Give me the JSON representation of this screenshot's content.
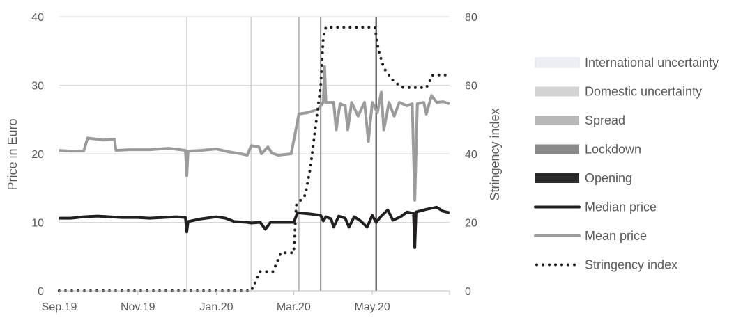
{
  "chart_data": {
    "type": "line",
    "left_axis": {
      "label": "Price in Euro",
      "ticks": [
        "0",
        "10",
        "20",
        "30",
        "40"
      ],
      "range": [
        0,
        40
      ]
    },
    "right_axis": {
      "label": "Stringency index",
      "ticks": [
        "0",
        "20",
        "40",
        "60",
        "80"
      ],
      "range": [
        0,
        80
      ]
    },
    "x_axis": {
      "ticks": [
        "Sep.19",
        "Nov.19",
        "Jan.20",
        "Mar.20",
        "May.20"
      ],
      "tick_dates": [
        "2019-09-01",
        "2019-11-01",
        "2020-01-01",
        "2020-03-01",
        "2020-05-01"
      ],
      "range": [
        "2019-09-01",
        "2020-06-30"
      ]
    },
    "grid": true,
    "legend_position": "right",
    "events": [
      {
        "name": "International uncertainty",
        "date": "2019-12-09",
        "color": "#eceef3"
      },
      {
        "name": "Domestic uncertainty",
        "date": "2020-01-28",
        "color": "#d3d3d3"
      },
      {
        "name": "Spread",
        "date": "2020-03-05",
        "color": "#b8b8b8"
      },
      {
        "name": "Lockdown",
        "date": "2020-03-22",
        "color": "#8a8a8a"
      },
      {
        "name": "Opening",
        "date": "2020-05-04",
        "color": "#2b2b2b"
      }
    ],
    "series": [
      {
        "name": "Median price",
        "axis": "left",
        "color": "#231f20",
        "style": "solid",
        "points": [
          [
            "2019-09-01",
            10.6
          ],
          [
            "2019-09-10",
            10.6
          ],
          [
            "2019-09-20",
            10.8
          ],
          [
            "2019-10-01",
            10.9
          ],
          [
            "2019-10-10",
            10.8
          ],
          [
            "2019-10-20",
            10.7
          ],
          [
            "2019-11-01",
            10.7
          ],
          [
            "2019-11-10",
            10.6
          ],
          [
            "2019-11-20",
            10.7
          ],
          [
            "2019-12-01",
            10.8
          ],
          [
            "2019-12-08",
            10.7
          ],
          [
            "2019-12-09",
            8.6
          ],
          [
            "2019-12-10",
            10.1
          ],
          [
            "2019-12-20",
            10.5
          ],
          [
            "2020-01-01",
            10.8
          ],
          [
            "2020-01-08",
            10.6
          ],
          [
            "2020-01-15",
            10.1
          ],
          [
            "2020-01-25",
            10.0
          ],
          [
            "2020-01-28",
            9.9
          ],
          [
            "2020-02-04",
            10.0
          ],
          [
            "2020-02-08",
            9.0
          ],
          [
            "2020-02-12",
            10.0
          ],
          [
            "2020-02-20",
            10.0
          ],
          [
            "2020-03-01",
            10.0
          ],
          [
            "2020-03-04",
            11.4
          ],
          [
            "2020-03-15",
            11.2
          ],
          [
            "2020-03-22",
            11.0
          ],
          [
            "2020-03-24",
            10.2
          ],
          [
            "2020-03-26",
            10.8
          ],
          [
            "2020-03-30",
            10.5
          ],
          [
            "2020-04-01",
            9.3
          ],
          [
            "2020-04-05",
            10.9
          ],
          [
            "2020-04-10",
            10.6
          ],
          [
            "2020-04-13",
            9.3
          ],
          [
            "2020-04-17",
            10.8
          ],
          [
            "2020-04-22",
            10.2
          ],
          [
            "2020-04-27",
            9.3
          ],
          [
            "2020-05-01",
            11.0
          ],
          [
            "2020-05-04",
            10.0
          ],
          [
            "2020-05-08",
            10.9
          ],
          [
            "2020-05-13",
            11.8
          ],
          [
            "2020-05-17",
            10.3
          ],
          [
            "2020-05-23",
            10.8
          ],
          [
            "2020-05-28",
            11.5
          ],
          [
            "2020-06-02",
            11.3
          ],
          [
            "2020-06-03",
            6.3
          ],
          [
            "2020-06-04",
            11.5
          ],
          [
            "2020-06-12",
            11.9
          ],
          [
            "2020-06-20",
            12.2
          ],
          [
            "2020-06-25",
            11.6
          ],
          [
            "2020-06-30",
            11.4
          ]
        ]
      },
      {
        "name": "Mean price",
        "axis": "left",
        "color": "#9b9b9b",
        "style": "solid",
        "points": [
          [
            "2019-09-01",
            20.5
          ],
          [
            "2019-09-10",
            20.4
          ],
          [
            "2019-09-20",
            20.4
          ],
          [
            "2019-09-23",
            22.3
          ],
          [
            "2019-10-05",
            22.0
          ],
          [
            "2019-10-14",
            22.1
          ],
          [
            "2019-10-15",
            20.5
          ],
          [
            "2019-10-25",
            20.6
          ],
          [
            "2019-11-10",
            20.6
          ],
          [
            "2019-11-25",
            20.8
          ],
          [
            "2019-12-08",
            20.5
          ],
          [
            "2019-12-09",
            16.8
          ],
          [
            "2019-12-10",
            20.4
          ],
          [
            "2019-12-20",
            20.5
          ],
          [
            "2020-01-01",
            20.7
          ],
          [
            "2020-01-10",
            20.3
          ],
          [
            "2020-01-20",
            20.0
          ],
          [
            "2020-01-25",
            19.8
          ],
          [
            "2020-01-28",
            21.2
          ],
          [
            "2020-02-03",
            21.0
          ],
          [
            "2020-02-05",
            20.0
          ],
          [
            "2020-02-10",
            21.0
          ],
          [
            "2020-02-13",
            20.1
          ],
          [
            "2020-02-18",
            19.8
          ],
          [
            "2020-02-28",
            20.0
          ],
          [
            "2020-03-02",
            22.8
          ],
          [
            "2020-03-05",
            25.8
          ],
          [
            "2020-03-12",
            26.0
          ],
          [
            "2020-03-20",
            26.5
          ],
          [
            "2020-03-24",
            27.5
          ],
          [
            "2020-03-25",
            32.7
          ],
          [
            "2020-03-26",
            27.5
          ],
          [
            "2020-04-01",
            27.5
          ],
          [
            "2020-04-03",
            23.5
          ],
          [
            "2020-04-06",
            27.3
          ],
          [
            "2020-04-10",
            27.0
          ],
          [
            "2020-04-12",
            23.5
          ],
          [
            "2020-04-15",
            27.5
          ],
          [
            "2020-04-20",
            25.5
          ],
          [
            "2020-04-25",
            27.5
          ],
          [
            "2020-04-28",
            21.8
          ],
          [
            "2020-05-01",
            27.5
          ],
          [
            "2020-05-05",
            26.0
          ],
          [
            "2020-05-08",
            29.0
          ],
          [
            "2020-05-10",
            23.5
          ],
          [
            "2020-05-14",
            27.5
          ],
          [
            "2020-05-18",
            25.5
          ],
          [
            "2020-05-22",
            27.5
          ],
          [
            "2020-05-28",
            27.0
          ],
          [
            "2020-06-01",
            27.3
          ],
          [
            "2020-06-03",
            13.2
          ],
          [
            "2020-06-05",
            27.3
          ],
          [
            "2020-06-10",
            27.5
          ],
          [
            "2020-06-12",
            25.8
          ],
          [
            "2020-06-16",
            28.5
          ],
          [
            "2020-06-20",
            27.5
          ],
          [
            "2020-06-25",
            27.6
          ],
          [
            "2020-06-30",
            27.3
          ]
        ]
      },
      {
        "name": "Stringency index",
        "axis": "right",
        "color": "#231f20",
        "style": "dotted",
        "points": [
          [
            "2019-09-01",
            0
          ],
          [
            "2020-01-28",
            0
          ],
          [
            "2020-02-04",
            5.6
          ],
          [
            "2020-02-14",
            5.6
          ],
          [
            "2020-02-20",
            11.1
          ],
          [
            "2020-03-01",
            11.1
          ],
          [
            "2020-03-03",
            25
          ],
          [
            "2020-03-10",
            28
          ],
          [
            "2020-03-14",
            36
          ],
          [
            "2020-03-18",
            48
          ],
          [
            "2020-03-22",
            60
          ],
          [
            "2020-03-24",
            74
          ],
          [
            "2020-03-26",
            76.9
          ],
          [
            "2020-05-03",
            76.9
          ],
          [
            "2020-05-06",
            70
          ],
          [
            "2020-05-10",
            65
          ],
          [
            "2020-05-18",
            61
          ],
          [
            "2020-05-25",
            59.3
          ],
          [
            "2020-06-12",
            59.3
          ],
          [
            "2020-06-17",
            63
          ],
          [
            "2020-06-30",
            63
          ]
        ]
      }
    ]
  }
}
